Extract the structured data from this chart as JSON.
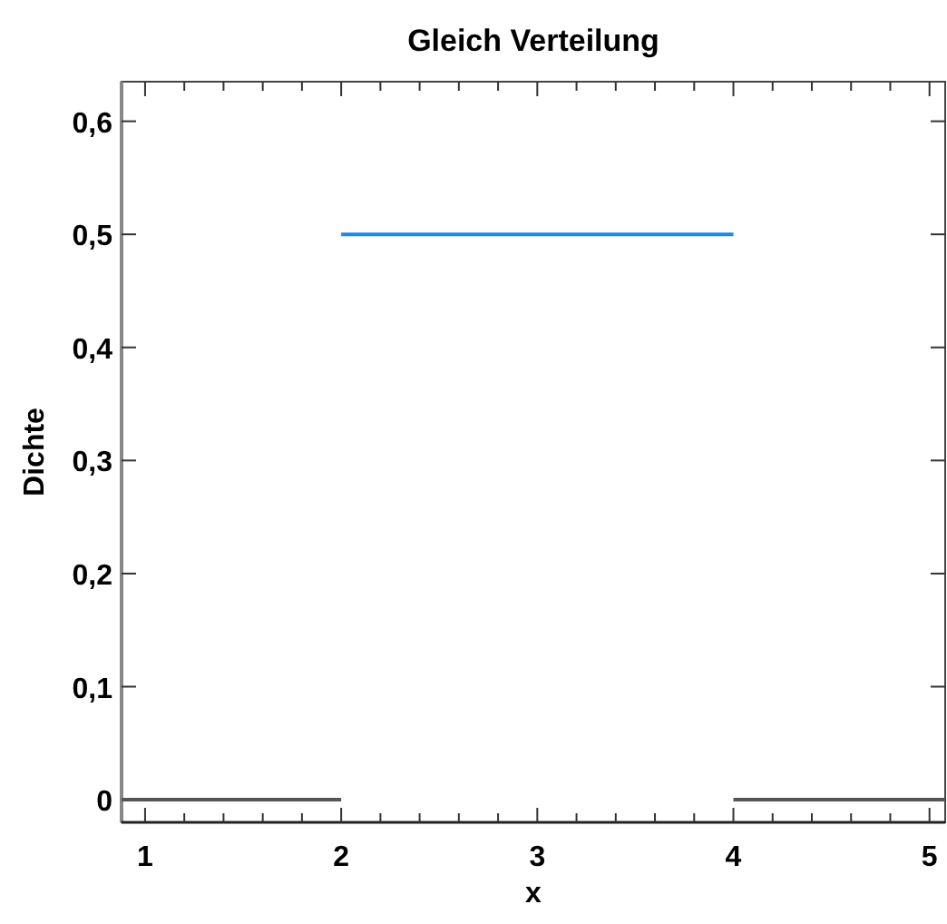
{
  "chart_data": {
    "type": "line",
    "title": "Gleich Verteilung",
    "xlabel": "x",
    "ylabel": "Dichte",
    "series": [
      {
        "color": "#555555",
        "x": [
          0.88,
          2
        ],
        "values": [
          0,
          0
        ]
      },
      {
        "color": "#1e88e5",
        "x": [
          2,
          4
        ],
        "values": [
          0.5,
          0.5
        ]
      },
      {
        "color": "#555555",
        "x": [
          4,
          5.08
        ],
        "values": [
          0,
          0
        ]
      }
    ],
    "xlim": [
      0.88,
      5.08
    ],
    "xticks": [
      1,
      {
        "value": 1.2,
        "label": null
      },
      {
        "value": 1.4,
        "label": null
      },
      {
        "value": 1.6,
        "label": null
      },
      {
        "value": 1.8,
        "label": null
      },
      2,
      {
        "value": 2.2,
        "label": null
      },
      {
        "value": 2.4,
        "label": null
      },
      {
        "value": 2.6,
        "label": null
      },
      {
        "value": 2.8,
        "label": null
      },
      3,
      {
        "value": 3.2,
        "label": null
      },
      {
        "value": 3.4,
        "label": null
      },
      {
        "value": 3.6,
        "label": null
      },
      {
        "value": 3.8,
        "label": null
      },
      4,
      {
        "value": 4.2,
        "label": null
      },
      {
        "value": 4.4,
        "label": null
      },
      {
        "value": 4.6,
        "label": null
      },
      {
        "value": 4.8,
        "label": null
      },
      5
    ],
    "ylim": [
      -0.02,
      0.635
    ],
    "yticks": [
      {
        "value": 0,
        "label": "0"
      },
      {
        "value": 0.1,
        "label": "0,1"
      },
      {
        "value": 0.2,
        "label": "0,2"
      },
      {
        "value": 0.3,
        "label": "0,3"
      },
      {
        "value": 0.4,
        "label": "0,4"
      },
      {
        "value": 0.5,
        "label": "0,5"
      },
      {
        "value": 0.6,
        "label": "0,6"
      }
    ],
    "grid": false,
    "marker": "none",
    "line_style": "solid"
  }
}
